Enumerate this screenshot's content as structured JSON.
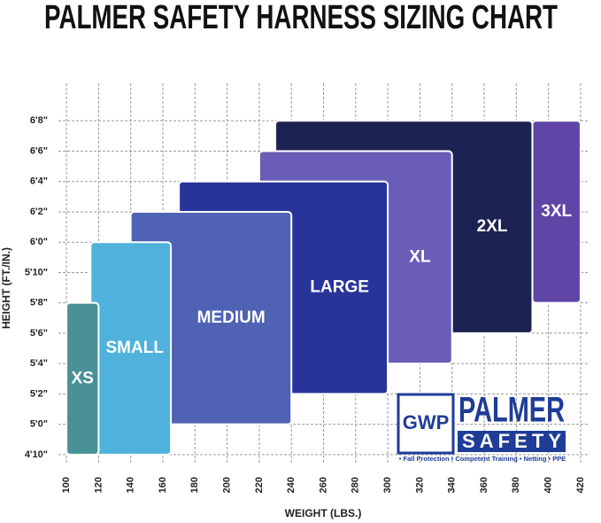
{
  "chart_data": {
    "type": "range-box",
    "title": "PALMER SAFETY HARNESS SIZING CHART",
    "x_label": "WEIGHT (LBS.)",
    "y_label": "HEIGHT (FT./IN.)",
    "xlim": [
      95,
      425
    ],
    "xticks": [
      100,
      120,
      140,
      160,
      180,
      200,
      220,
      240,
      260,
      280,
      300,
      320,
      340,
      360,
      380,
      400,
      420
    ],
    "ylim": [
      57,
      82
    ],
    "yticks": [
      {
        "value": 58,
        "label": "4'10\""
      },
      {
        "value": 60,
        "label": "5'0\""
      },
      {
        "value": 62,
        "label": "5'2\""
      },
      {
        "value": 64,
        "label": "5'4\""
      },
      {
        "value": 66,
        "label": "5'6\""
      },
      {
        "value": 68,
        "label": "5'8\""
      },
      {
        "value": 70,
        "label": "5'10\""
      },
      {
        "value": 72,
        "label": "6'0\""
      },
      {
        "value": 74,
        "label": "6'2\""
      },
      {
        "value": 76,
        "label": "6'4\""
      },
      {
        "value": 78,
        "label": "6'6\""
      },
      {
        "value": 80,
        "label": "6'8\""
      }
    ],
    "grid": true,
    "series": [
      {
        "name": "XS",
        "color": "#4a9097",
        "x": [
          100,
          120
        ],
        "y": [
          58,
          68
        ]
      },
      {
        "name": "SMALL",
        "color": "#4fb2dc",
        "x": [
          115,
          165
        ],
        "y": [
          58,
          72
        ]
      },
      {
        "name": "MEDIUM",
        "color": "#4f62b3",
        "x": [
          140,
          240
        ],
        "y": [
          60,
          74
        ]
      },
      {
        "name": "LARGE",
        "color": "#28349a",
        "x": [
          170,
          300
        ],
        "y": [
          62,
          76
        ]
      },
      {
        "name": "XL",
        "color": "#6a5db7",
        "x": [
          220,
          340
        ],
        "y": [
          64,
          78
        ]
      },
      {
        "name": "2XL",
        "color": "#1c2252",
        "x": [
          230,
          390
        ],
        "y": [
          66,
          80
        ]
      },
      {
        "name": "3XL",
        "color": "#5f46a6",
        "x": [
          390,
          420
        ],
        "y": [
          68,
          80
        ]
      }
    ]
  },
  "logo": {
    "badge": "GWP",
    "name": "PALMER",
    "sub": "SAFETY",
    "tagline": "• Fall Protection • Competent Training • Netting • PPE"
  }
}
